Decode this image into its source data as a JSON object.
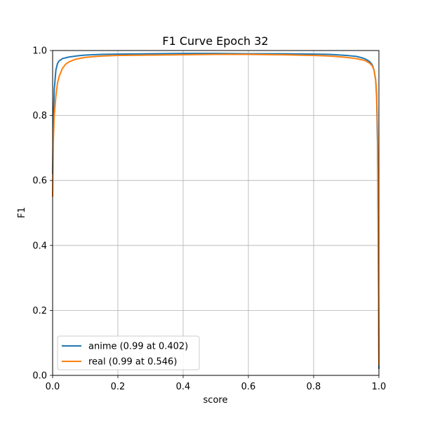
{
  "chart_data": {
    "type": "line",
    "title": "F1 Curve Epoch 32",
    "xlabel": "score",
    "ylabel": "F1",
    "xlim": [
      0,
      1
    ],
    "ylim": [
      0,
      1
    ],
    "grid": true,
    "legend_position": "lower-left",
    "x_ticks": [
      "0.0",
      "0.2",
      "0.4",
      "0.6",
      "0.8",
      "1.0"
    ],
    "y_ticks": [
      "0.0",
      "0.2",
      "0.4",
      "0.6",
      "0.8",
      "1.0"
    ],
    "series": [
      {
        "name": "anime (0.99 at 0.402)",
        "color": "#1f77b4",
        "x": [
          0,
          0.002,
          0.005,
          0.01,
          0.015,
          0.02,
          0.03,
          0.05,
          0.08,
          0.1,
          0.15,
          0.2,
          0.3,
          0.4,
          0.5,
          0.6,
          0.7,
          0.8,
          0.85,
          0.9,
          0.93,
          0.95,
          0.96,
          0.97,
          0.975,
          0.98,
          0.985,
          0.99,
          0.993,
          0.996,
          0.998,
          1.0
        ],
        "y": [
          0.62,
          0.78,
          0.88,
          0.94,
          0.96,
          0.968,
          0.975,
          0.98,
          0.984,
          0.986,
          0.988,
          0.989,
          0.99,
          0.991,
          0.991,
          0.99,
          0.99,
          0.989,
          0.988,
          0.985,
          0.982,
          0.977,
          0.973,
          0.967,
          0.962,
          0.955,
          0.94,
          0.91,
          0.86,
          0.7,
          0.4,
          0.02
        ]
      },
      {
        "name": "real (0.99 at 0.546)",
        "color": "#ff7f0e",
        "x": [
          0,
          0.002,
          0.005,
          0.01,
          0.015,
          0.02,
          0.03,
          0.04,
          0.05,
          0.07,
          0.1,
          0.15,
          0.2,
          0.3,
          0.4,
          0.5,
          0.546,
          0.6,
          0.7,
          0.8,
          0.85,
          0.9,
          0.93,
          0.95,
          0.96,
          0.97,
          0.975,
          0.98,
          0.985,
          0.99,
          0.993,
          0.996,
          0.998,
          1.0
        ],
        "y": [
          0.55,
          0.72,
          0.8,
          0.86,
          0.9,
          0.92,
          0.945,
          0.958,
          0.965,
          0.973,
          0.979,
          0.983,
          0.985,
          0.986,
          0.987,
          0.988,
          0.988,
          0.988,
          0.987,
          0.985,
          0.983,
          0.979,
          0.975,
          0.971,
          0.968,
          0.962,
          0.958,
          0.952,
          0.94,
          0.91,
          0.87,
          0.74,
          0.45,
          0.03
        ]
      }
    ]
  }
}
